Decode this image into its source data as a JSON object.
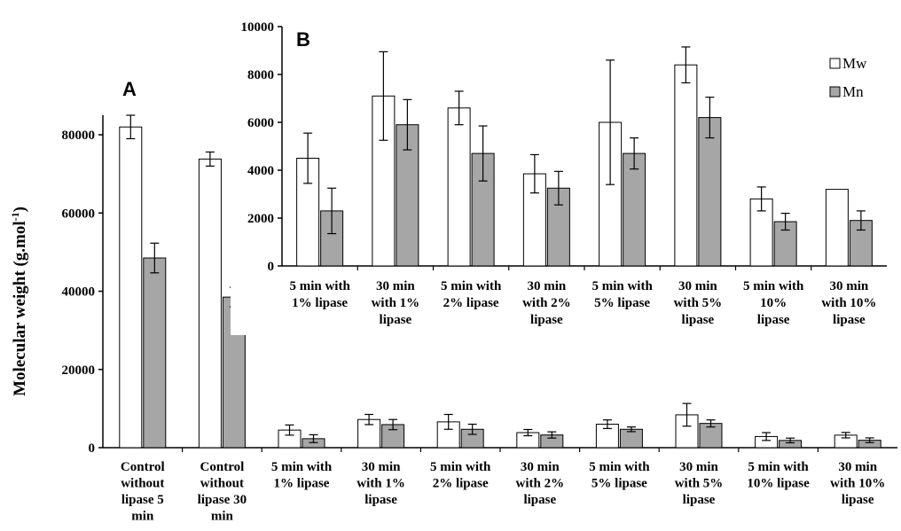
{
  "chart_data": [
    {
      "panel_label": "A",
      "type": "bar",
      "ylabel": "Molecular weight (g.mol-1)",
      "ylim": [
        0,
        85000
      ],
      "yticks": [
        "0",
        "20000",
        "40000",
        "60000",
        "80000"
      ],
      "categories": [
        [
          "Control",
          "without",
          "lipase 5",
          "min"
        ],
        [
          "Control",
          "without",
          "lipase 30",
          "min"
        ],
        [
          "5 min with",
          "1% lipase"
        ],
        [
          "30 min",
          "with 1%",
          "lipase"
        ],
        [
          "5 min with",
          "2% lipase"
        ],
        [
          "30 min",
          "with 2%",
          "lipase"
        ],
        [
          "5 min with",
          "5% lipase"
        ],
        [
          "30 min",
          "with 5%",
          "lipase"
        ],
        [
          "5 min with",
          "10% lipase"
        ],
        [
          "30 min",
          "with 10%",
          "lipase"
        ]
      ],
      "series": [
        {
          "name": "Mw",
          "color": "#ffffff",
          "values": [
            82000,
            73800,
            4500,
            7200,
            6600,
            3850,
            6000,
            8400,
            2850,
            3200
          ],
          "errors": [
            3000,
            1800,
            1300,
            1300,
            1900,
            800,
            1100,
            2900,
            1000,
            700
          ]
        },
        {
          "name": "Mn",
          "color": "#a6a6a6",
          "values": [
            48500,
            38500,
            2300,
            5900,
            4700,
            3250,
            4700,
            6200,
            1850,
            1900
          ],
          "errors": [
            3800,
            2500,
            1000,
            1300,
            1300,
            800,
            600,
            900,
            600,
            600
          ]
        }
      ]
    },
    {
      "panel_label": "B",
      "type": "bar",
      "ylim": [
        0,
        10000
      ],
      "yticks": [
        "0",
        "2000",
        "4000",
        "6000",
        "8000",
        "10000"
      ],
      "categories": [
        [
          "5 min with",
          "1% lipase"
        ],
        [
          "30 min",
          "with 1%",
          "lipase"
        ],
        [
          "5 min with",
          "2% lipase"
        ],
        [
          "30 min",
          "with 2%",
          "lipase"
        ],
        [
          "5 min with",
          "5% lipase"
        ],
        [
          "30 min",
          "with 5%",
          "lipase"
        ],
        [
          "5 min with",
          "10%",
          "lipase"
        ],
        [
          "30 min",
          "with 10%",
          "lipase"
        ]
      ],
      "legend": [
        "Mw",
        "Mn"
      ],
      "legend_position": "top-right",
      "series": [
        {
          "name": "Mw",
          "color": "#ffffff",
          "values": [
            4500,
            7100,
            6600,
            3850,
            6000,
            8400,
            2800,
            3200
          ],
          "errors": [
            1050,
            1850,
            700,
            800,
            2600,
            750,
            500,
            0
          ]
        },
        {
          "name": "Mn",
          "color": "#a6a6a6",
          "values": [
            2300,
            5900,
            4700,
            3250,
            4700,
            6200,
            1850,
            1900
          ],
          "errors": [
            950,
            1050,
            1150,
            700,
            650,
            850,
            350,
            400
          ]
        }
      ]
    }
  ]
}
